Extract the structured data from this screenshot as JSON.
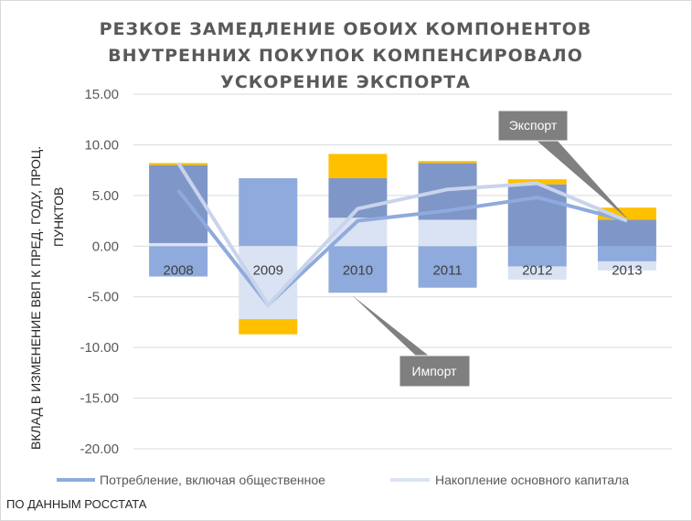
{
  "chart_data": {
    "type": "bar",
    "title_lines": [
      "РЕЗКОЕ ЗАМЕДЛЕНИЕ ОБОИХ КОМПОНЕНТОВ",
      "ВНУТРЕННИХ ПОКУПОК КОМПЕНСИРОВАЛО",
      "УСКОРЕНИЕ ЭКСПОРТА"
    ],
    "ylabel_lines": [
      "ВКЛАД В ИЗМЕНЕНИЕ ВВП К ПРЕД. ГОДУ, ПРОЦ.",
      "ПУНКТОВ"
    ],
    "categories": [
      "2008",
      "2009",
      "2010",
      "2011",
      "2012",
      "2013"
    ],
    "ylim": [
      -20,
      15
    ],
    "yticks": [
      15,
      10,
      5,
      0,
      -5,
      -10,
      -15,
      -20
    ],
    "ytick_labels": [
      "15.00",
      "10.00",
      "5.00",
      "0.00",
      "-5.00",
      "-10.00",
      "-15.00",
      "-20.00"
    ],
    "grid": true,
    "legend_position": "bottom",
    "series": [
      {
        "name": "Потребление, включая общественное",
        "kind": "bar",
        "color": "#8faadc",
        "values": [
          -3.0,
          6.7,
          -4.6,
          -4.1,
          -2.0,
          -1.5
        ]
      },
      {
        "name": "Накопление основного капитала",
        "kind": "bar",
        "color": "#dae3f3",
        "values": [
          0.3,
          -7.2,
          2.8,
          2.6,
          -1.3,
          -0.9
        ]
      },
      {
        "kind": "bar",
        "color": "#7f97c8",
        "values": [
          7.7,
          0,
          3.9,
          5.6,
          6.1,
          2.6
        ]
      },
      {
        "kind": "bar",
        "color": "#ffc000",
        "values": [
          0.2,
          -1.5,
          2.4,
          0.2,
          0.5,
          1.2
        ]
      },
      {
        "kind": "line",
        "color": "#8faadc",
        "values": [
          5.5,
          -5.8,
          2.5,
          3.5,
          4.8,
          2.5
        ]
      },
      {
        "kind": "line",
        "color": "#c9d4ec",
        "values": [
          8.2,
          -5.8,
          3.7,
          5.6,
          6.2,
          2.5
        ]
      }
    ],
    "annotations": [
      {
        "label": "Экспорт"
      },
      {
        "label": "Импорт"
      }
    ],
    "source": "ПО ДАННЫМ РОССТАТА"
  }
}
